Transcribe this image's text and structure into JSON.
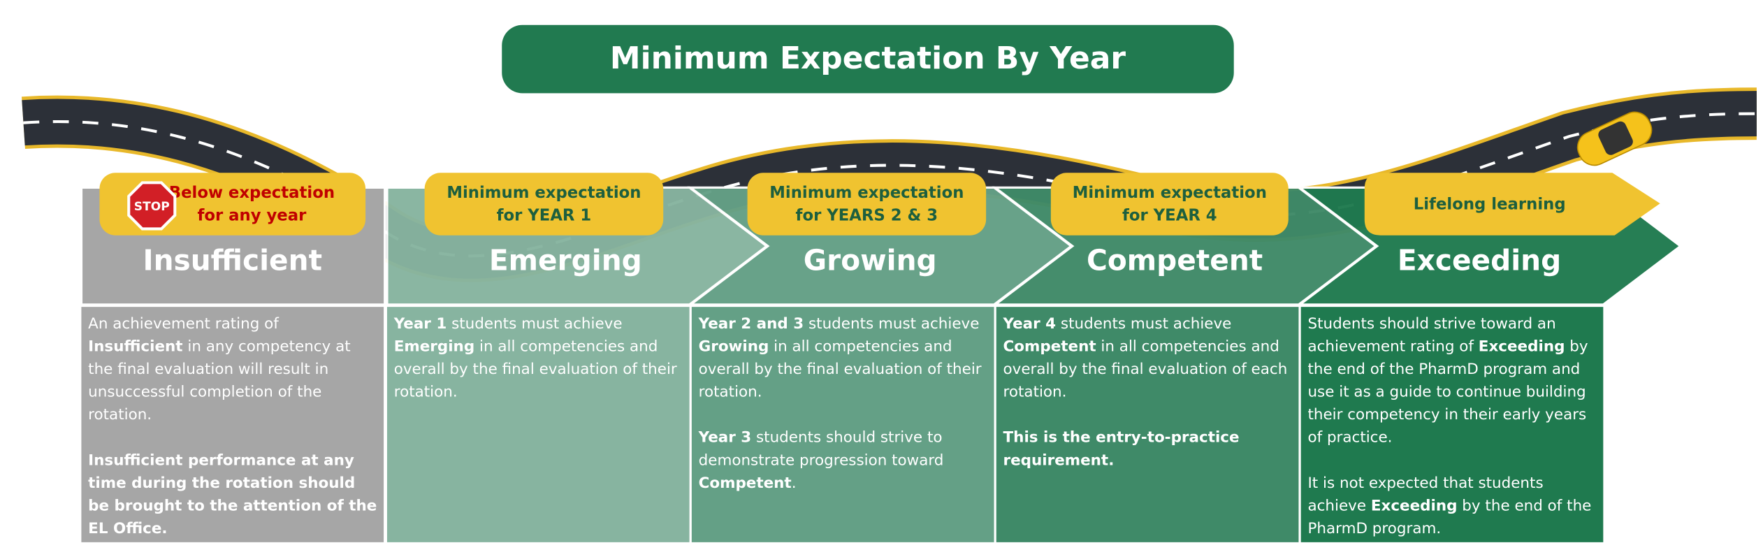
{
  "title": "Minimum Expectation By Year",
  "stop_sign": "STOP",
  "stages": [
    {
      "badge": [
        "Below expectation",
        "for any year"
      ],
      "name": "Insufficient",
      "description": [
        [
          {
            "text": "An achievement rating of "
          },
          {
            "text": "Insufficient",
            "bold": true
          },
          {
            "text": " in any competency at the final evaluation will result in unsuccessful completion of the rotation."
          }
        ],
        [
          {
            "text": "Insufficient performance at any time during the rotation should be brought to the attention of the EL Office.",
            "bold": true
          }
        ]
      ]
    },
    {
      "badge": [
        "Minimum expectation",
        "for YEAR 1"
      ],
      "name": "Emerging",
      "description": [
        [
          {
            "text": "Year 1",
            "bold": true
          },
          {
            "text": " students must achieve "
          },
          {
            "text": "Emerging",
            "bold": true
          },
          {
            "text": " in all competencies and overall by the final evaluation of their rotation."
          }
        ]
      ]
    },
    {
      "badge": [
        "Minimum expectation",
        "for YEARS 2 & 3"
      ],
      "name": "Growing",
      "description": [
        [
          {
            "text": "Year 2 and 3",
            "bold": true
          },
          {
            "text": " students must achieve "
          },
          {
            "text": "Growing",
            "bold": true
          },
          {
            "text": " in all competencies and overall by the final evaluation of their rotation."
          }
        ],
        [
          {
            "text": "Year 3",
            "bold": true
          },
          {
            "text": " students should strive to demonstrate progression toward "
          },
          {
            "text": "Competent",
            "bold": true
          },
          {
            "text": "."
          }
        ]
      ]
    },
    {
      "badge": [
        "Minimum expectation",
        "for YEAR 4"
      ],
      "name": "Competent",
      "description": [
        [
          {
            "text": "Year 4",
            "bold": true
          },
          {
            "text": " students must achieve "
          },
          {
            "text": "Competent",
            "bold": true
          },
          {
            "text": " in all competencies and overall by the final evaluation of each rotation."
          }
        ],
        [
          {
            "text": "This is the entry-to-practice requirement.",
            "bold": true
          }
        ]
      ]
    },
    {
      "badge": [
        "Lifelong learning"
      ],
      "name": "Exceeding",
      "description": [
        [
          {
            "text": "Students should strive toward an achievement rating of "
          },
          {
            "text": "Exceeding",
            "bold": true
          },
          {
            "text": " by the end of the PharmD program and use it as a guide to continue building their competency in their early years of practice."
          }
        ],
        [
          {
            "text": "It is not expected that students achieve "
          },
          {
            "text": "Exceeding",
            "bold": true
          },
          {
            "text": " by the end of the PharmD program."
          }
        ]
      ]
    }
  ]
}
